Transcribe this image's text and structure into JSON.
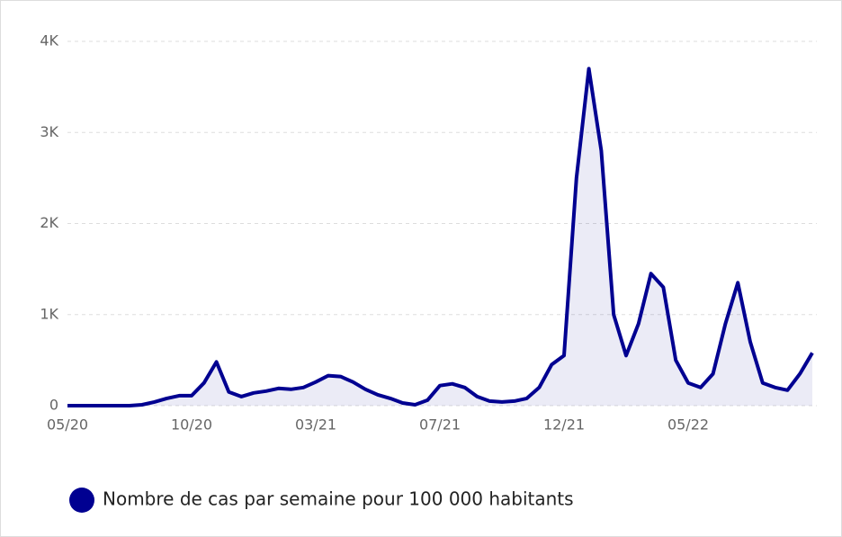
{
  "chart_data": {
    "type": "line",
    "categories": [
      "05/20",
      null,
      null,
      null,
      null,
      null,
      null,
      null,
      null,
      null,
      "10/20",
      null,
      null,
      null,
      null,
      null,
      null,
      null,
      null,
      null,
      "03/21",
      null,
      null,
      null,
      null,
      null,
      null,
      null,
      null,
      null,
      "07/21",
      null,
      null,
      null,
      null,
      null,
      null,
      null,
      null,
      null,
      "12/21",
      null,
      null,
      null,
      null,
      null,
      null,
      null,
      null,
      null,
      "05/22",
      null,
      null,
      null,
      null,
      null,
      null,
      null,
      null,
      null,
      null
    ],
    "series": [
      {
        "name": "Nombre de cas par semaine pour 100 000 habitants",
        "color": "#000091",
        "values": [
          0,
          0,
          0,
          0,
          0,
          0,
          10,
          40,
          80,
          110,
          110,
          250,
          480,
          150,
          100,
          140,
          160,
          190,
          180,
          200,
          260,
          330,
          320,
          260,
          180,
          120,
          80,
          30,
          10,
          60,
          220,
          240,
          200,
          100,
          50,
          40,
          50,
          80,
          200,
          450,
          550,
          2500,
          3700,
          2800,
          1000,
          550,
          900,
          1450,
          1300,
          500,
          250,
          200,
          350,
          900,
          1350,
          700,
          250,
          200,
          170,
          350,
          580
        ]
      }
    ],
    "ylim": [
      0,
      4000
    ],
    "yticks": [
      0,
      {
        "value": 1000,
        "label": "1K"
      },
      {
        "value": 2000,
        "label": "2K"
      },
      {
        "value": 3000,
        "label": "3K"
      },
      {
        "value": 4000,
        "label": "4K"
      }
    ],
    "grid": true,
    "legend": "bottom-left"
  }
}
